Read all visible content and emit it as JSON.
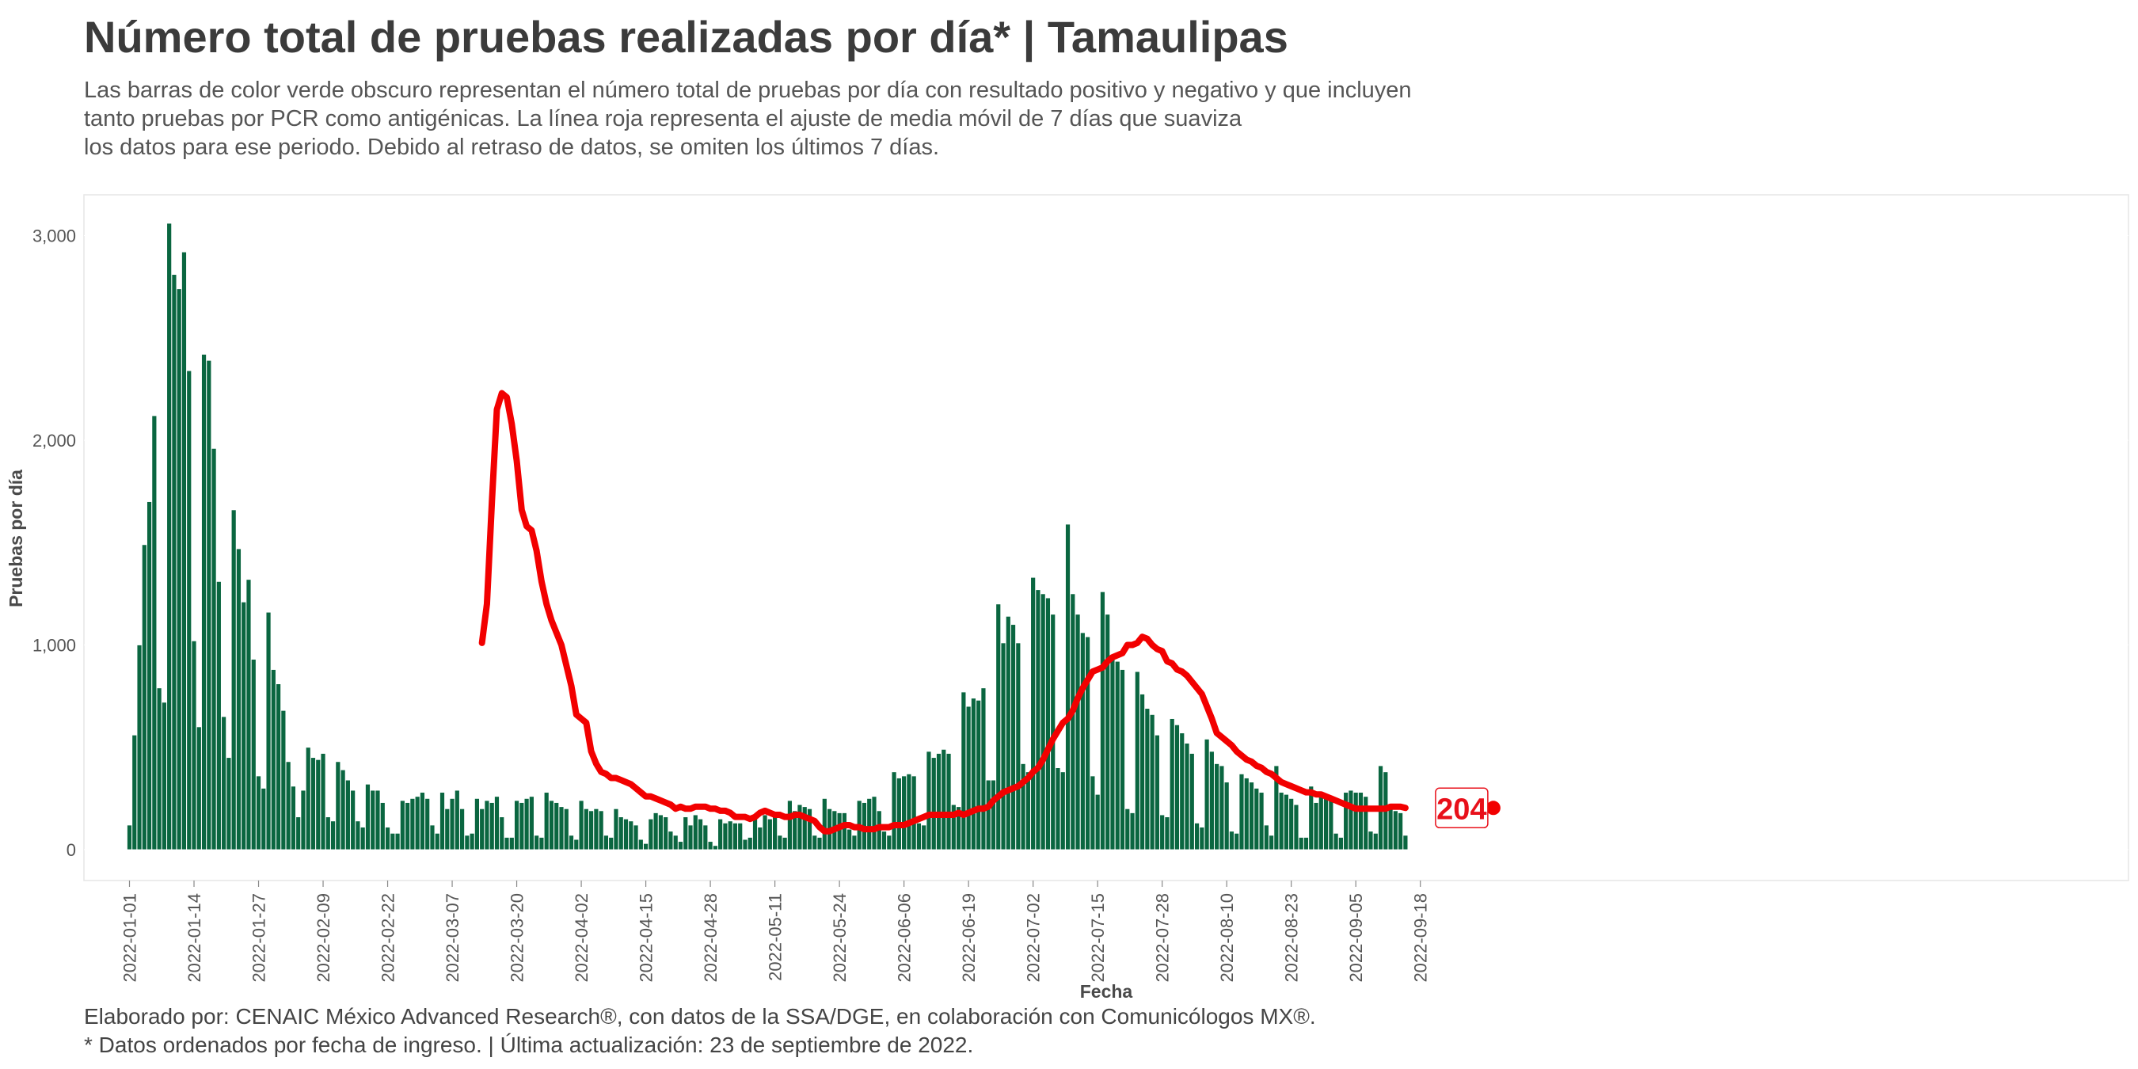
{
  "header": {
    "title": "Número total de pruebas realizadas por día* | Tamaulipas",
    "subtitle_lines": [
      "Las barras de color verde obscuro representan el número total de pruebas por día con resultado positivo y negativo y que incluyen",
      "tanto pruebas por PCR como antigénicas. La línea roja representa el ajuste de media móvil de 7 días que suaviza",
      "los datos para ese periodo. Debido al retraso de datos, se omiten los últimos 7 días."
    ]
  },
  "footer": {
    "caption_lines": [
      "Elaborado por: CENAIC México Advanced Research®, con datos de la SSA/DGE, en colaboración con Comunicólogos MX®.",
      "* Datos ordenados por fecha de ingreso. | Última actualización: 23 de septiembre de 2022."
    ]
  },
  "colors": {
    "bars": "#0a6640",
    "line": "#f20000",
    "label_border": "#e8101a"
  },
  "chart_data": {
    "type": "bar",
    "xlabel": "Fecha",
    "ylabel": "Pruebas por día",
    "x_start": "2022-01-01",
    "x_end": "2022-09-16",
    "ylim": [
      0,
      3200
    ],
    "y_ticks": [
      0,
      1000,
      2000,
      3000
    ],
    "y_tick_labels": [
      "0",
      "1,000",
      "2,000",
      "3,000"
    ],
    "x_ticks": [
      "2022-01-01",
      "2022-01-14",
      "2022-01-27",
      "2022-02-09",
      "2022-02-22",
      "2022-03-07",
      "2022-03-20",
      "2022-04-02",
      "2022-04-15",
      "2022-04-28",
      "2022-05-11",
      "2022-05-24",
      "2022-06-06",
      "2022-06-19",
      "2022-07-02",
      "2022-07-15",
      "2022-07-28",
      "2022-08-10",
      "2022-08-23",
      "2022-09-05",
      "2022-09-18"
    ],
    "series": [
      {
        "type": "bar",
        "values": [
          120,
          560,
          1000,
          1490,
          1700,
          2120,
          790,
          720,
          3060,
          2810,
          2740,
          2920,
          2340,
          1020,
          600,
          2420,
          2390,
          1960,
          1310,
          650,
          450,
          1660,
          1470,
          1210,
          1320,
          930,
          360,
          300,
          1160,
          880,
          810,
          680,
          430,
          310,
          160,
          290,
          500,
          450,
          440,
          470,
          160,
          140,
          430,
          390,
          340,
          290,
          140,
          110,
          320,
          290,
          290,
          230,
          110,
          80,
          80,
          240,
          230,
          250,
          260,
          280,
          250,
          120,
          80,
          280,
          200,
          250,
          290,
          200,
          70,
          80,
          250,
          200,
          240,
          230,
          260,
          160,
          60,
          60,
          240,
          230,
          250,
          260,
          70,
          60,
          280,
          240,
          230,
          210,
          200,
          70,
          50,
          240,
          200,
          190,
          200,
          190,
          70,
          60,
          200,
          160,
          150,
          140,
          120,
          50,
          30,
          150,
          180,
          170,
          160,
          90,
          70,
          40,
          160,
          120,
          170,
          150,
          120,
          40,
          20,
          150,
          130,
          140,
          130,
          130,
          50,
          60,
          150,
          110,
          170,
          150,
          170,
          70,
          60,
          240,
          190,
          220,
          210,
          200,
          70,
          60,
          250,
          200,
          190,
          180,
          180,
          100,
          70,
          240,
          230,
          250,
          260,
          190,
          90,
          70,
          380,
          350,
          360,
          370,
          360,
          130,
          120,
          480,
          450,
          470,
          490,
          470,
          220,
          210,
          770,
          700,
          740,
          730,
          790,
          340,
          340,
          1200,
          1010,
          1140,
          1100,
          1010,
          420,
          380,
          1330,
          1270,
          1250,
          1230,
          1150,
          400,
          380,
          1590,
          1250,
          1150,
          1060,
          1040,
          360,
          270,
          1260,
          1150,
          940,
          920,
          880,
          200,
          180,
          870,
          760,
          690,
          660,
          560,
          170,
          160,
          640,
          610,
          570,
          520,
          470,
          130,
          110,
          540,
          480,
          420,
          410,
          330,
          90,
          80,
          370,
          350,
          330,
          300,
          280,
          120,
          70,
          410,
          280,
          270,
          250,
          220,
          60,
          60,
          310,
          230,
          270,
          250,
          250,
          80,
          60,
          280,
          290,
          280,
          280,
          260,
          90,
          80,
          410,
          380,
          210,
          190,
          180,
          70
        ]
      },
      {
        "type": "line",
        "values": [
          1010,
          1200,
          1700,
          2150,
          2230,
          2210,
          2080,
          1900,
          1660,
          1580,
          1560,
          1460,
          1310,
          1200,
          1120,
          1060,
          1000,
          900,
          800,
          660,
          640,
          620,
          480,
          420,
          380,
          370,
          350,
          350,
          340,
          330,
          320,
          300,
          280,
          260,
          260,
          250,
          240,
          230,
          220,
          200,
          210,
          200,
          200,
          210,
          210,
          210,
          200,
          200,
          190,
          190,
          180,
          160,
          160,
          160,
          150,
          160,
          180,
          190,
          180,
          170,
          170,
          160,
          160,
          170,
          170,
          160,
          150,
          140,
          110,
          90,
          90,
          100,
          110,
          120,
          120,
          110,
          110,
          100,
          100,
          100,
          110,
          110,
          110,
          120,
          120,
          120,
          130,
          140,
          150,
          160,
          170,
          170,
          170,
          170,
          170,
          170,
          180,
          170,
          180,
          190,
          200,
          200,
          210,
          240,
          260,
          280,
          290,
          300,
          310,
          330,
          350,
          380,
          400,
          440,
          490,
          540,
          580,
          620,
          640,
          680,
          740,
          790,
          830,
          870,
          880,
          890,
          920,
          940,
          950,
          960,
          1000,
          1000,
          1010,
          1040,
          1030,
          1000,
          980,
          970,
          920,
          910,
          880,
          870,
          850,
          820,
          790,
          760,
          700,
          640,
          570,
          550,
          530,
          510,
          480,
          460,
          440,
          430,
          410,
          400,
          380,
          370,
          350,
          330,
          320,
          310,
          300,
          290,
          280,
          280,
          270,
          270,
          260,
          250,
          240,
          230,
          220,
          210,
          200,
          200,
          200,
          200,
          200,
          200,
          200,
          210,
          210,
          210,
          204
        ]
      }
    ],
    "last_value_label": "204"
  }
}
